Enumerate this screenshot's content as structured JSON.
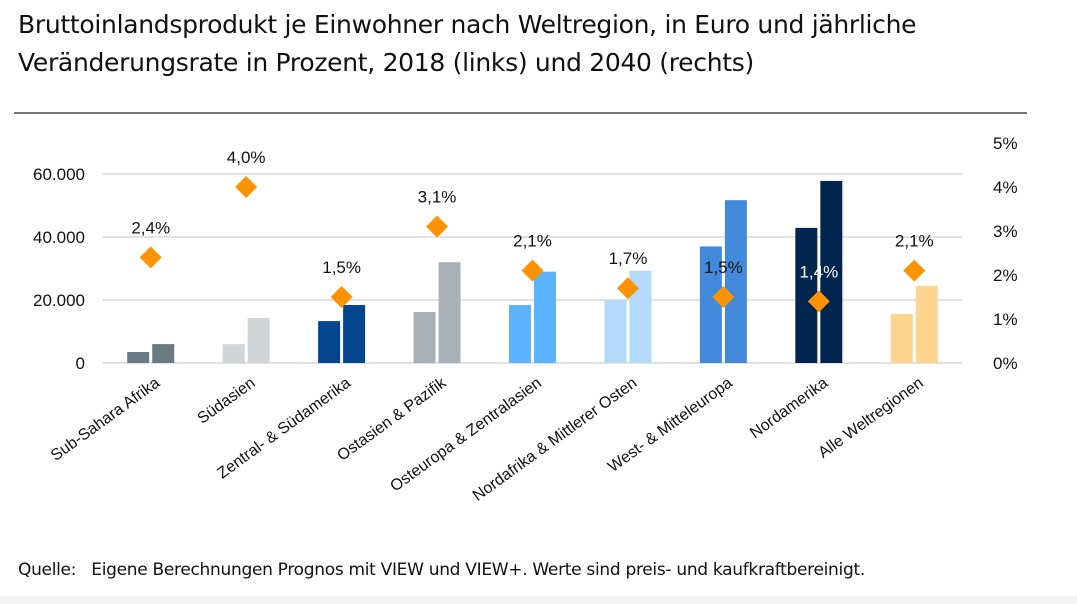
{
  "title": "Bruttoinlandsprodukt je Einwohner nach Weltregion, in Euro und jährliche Veränderungsrate in Prozent, 2018 (links) und 2040 (rechts)",
  "title_lines": [
    "Bruttoinlandsprodukt je Einwohner nach Weltregion, in Euro und jährliche",
    "Veränderungsrate in Prozent, 2018 (links) und 2040 (rechts)"
  ],
  "footer": {
    "label": "Quelle:",
    "text": "Eigene Berechnungen Prognos mit VIEW und VIEW+. Werte sind preis- und kaufkraftbereinigt."
  },
  "chart_data": {
    "type": "bar",
    "title": "Bruttoinlandsprodukt je Einwohner nach Weltregion, in Euro und jährliche Veränderungsrate in Prozent, 2018 (links) und 2040 (rechts)",
    "xlabel": "",
    "ylabel": "",
    "y2label": "",
    "categories": [
      "Sub-Sahara Afrika",
      "Südasien",
      "Zentral- & Südamerika",
      "Ostasien & Pazifik",
      "Osteuropa & Zentralasien",
      "Nordafrika & Mittlerer Osten",
      "West- & Mitteleuropa",
      "Nordamerika",
      "Alle Weltregionen"
    ],
    "bar_colors": [
      "#6b7b83",
      "#d0d5d8",
      "#03458f",
      "#a9b1b7",
      "#5db3fb",
      "#b3dafb",
      "#448adc",
      "#00264f",
      "#fdd58e"
    ],
    "series": [
      {
        "name": "2018",
        "axis": "left",
        "values": [
          3500,
          6000,
          13300,
          16200,
          18400,
          20000,
          37000,
          42900,
          15600
        ]
      },
      {
        "name": "2040",
        "axis": "left",
        "values": [
          6000,
          14300,
          18400,
          32000,
          29000,
          29300,
          51700,
          57800,
          24500
        ]
      },
      {
        "name": "Jährliche Veränderungsrate",
        "axis": "right",
        "type": "scatter",
        "marker": "diamond",
        "color": "#fe9200",
        "values": [
          2.4,
          4.0,
          1.5,
          3.1,
          2.1,
          1.7,
          1.5,
          1.4,
          2.1
        ],
        "labels": [
          "2,4%",
          "4,0%",
          "1,5%",
          "3,1%",
          "2,1%",
          "1,7%",
          "1,5%",
          "1,4%",
          "2,1%"
        ]
      }
    ],
    "ylim": [
      0,
      60000
    ],
    "yticks": [
      0,
      20000,
      40000,
      60000
    ],
    "ytick_labels": [
      "0",
      "20.000",
      "40.000",
      "60.000"
    ],
    "y2lim": [
      0,
      5
    ],
    "y2ticks": [
      0,
      1,
      2,
      3,
      4,
      5
    ],
    "y2tick_labels": [
      "0%",
      "1%",
      "2%",
      "3%",
      "4%",
      "5%"
    ],
    "grid": true,
    "legend": "none"
  }
}
